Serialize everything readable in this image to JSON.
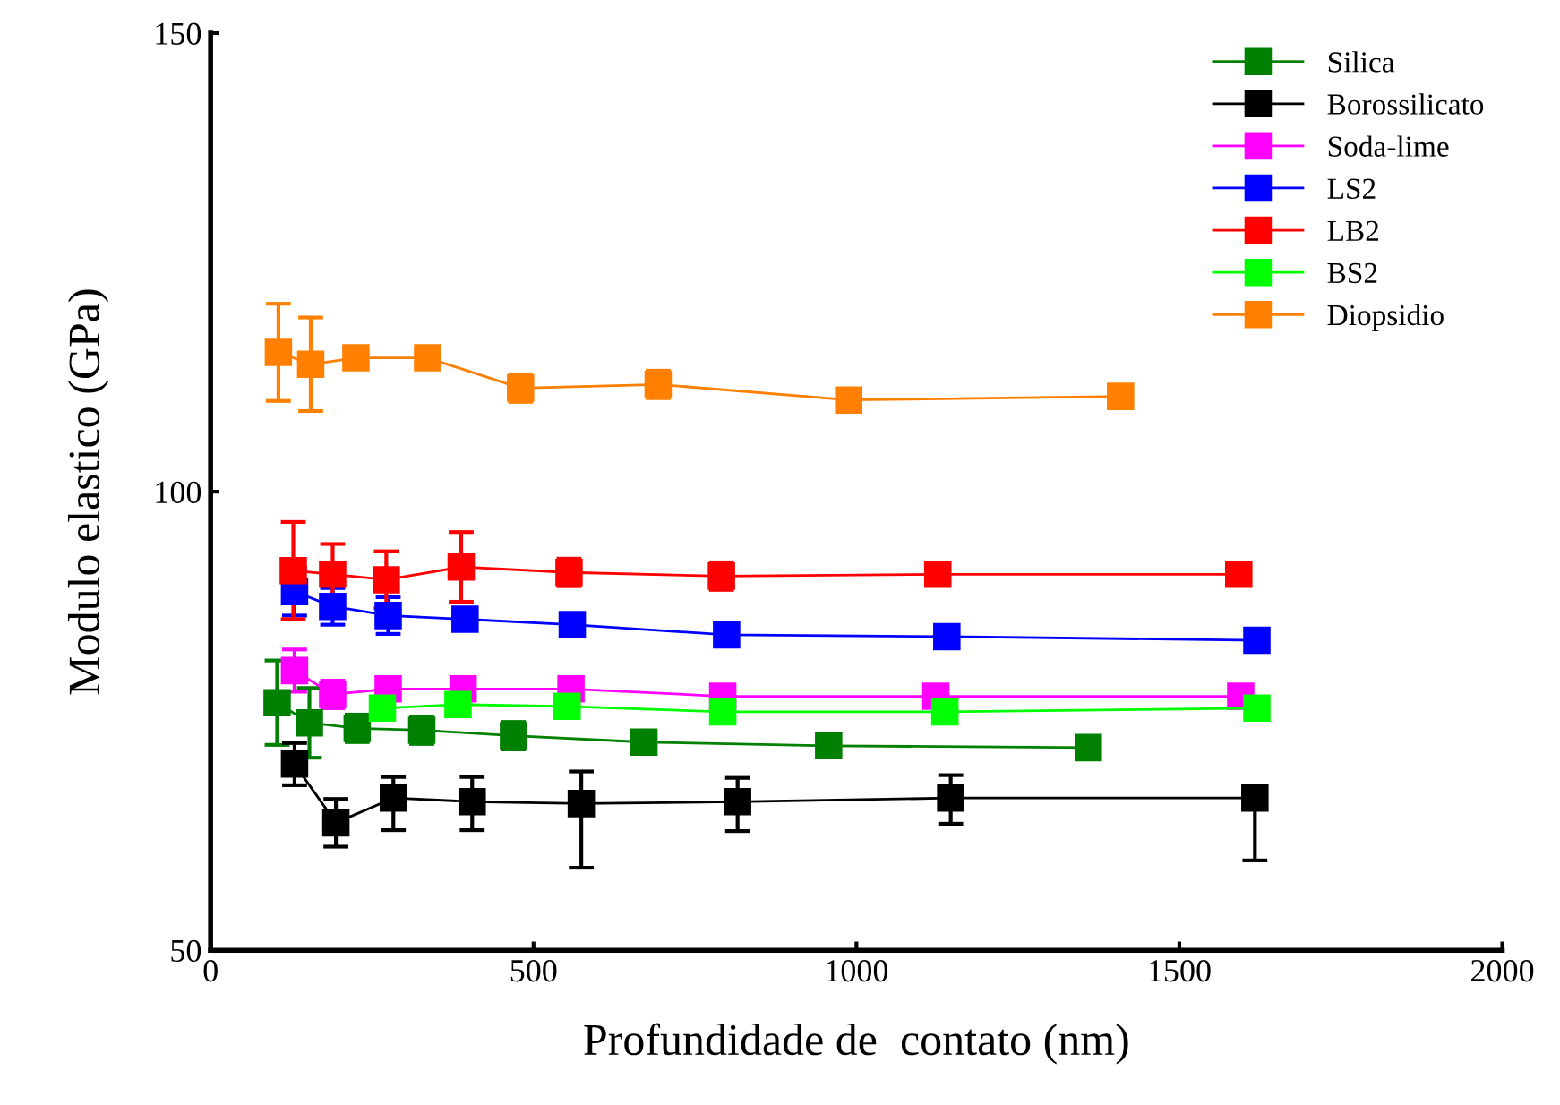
{
  "chart_data": {
    "type": "line",
    "xlabel": "Profundidade de  contato (nm)",
    "ylabel": "Modulo elastico (GPa)",
    "xlim": [
      0,
      2000
    ],
    "xticks": [
      0,
      500,
      1000,
      1500,
      2000
    ],
    "ylim": [
      50,
      150
    ],
    "yticks": [
      50,
      100,
      150
    ],
    "grid": false,
    "legend": "top right",
    "marker": "square",
    "line_style": "solid",
    "series": [
      {
        "name": "Silica",
        "color": "#008000",
        "x": [
          103,
          153,
          227,
          327,
          469,
          671,
          957,
          1359
        ],
        "values": [
          77.0,
          74.8,
          74.2,
          74.0,
          73.4,
          72.7,
          72.3,
          72.1
        ],
        "errors": [
          4.6,
          3.8,
          1.5,
          1.5,
          1.5,
          null,
          null,
          null
        ]
      },
      {
        "name": "Borossilicato",
        "color": "#000000",
        "x": [
          130,
          194,
          283,
          405,
          574,
          816,
          1146,
          1617
        ],
        "values": [
          70.3,
          63.9,
          66.6,
          66.2,
          66.0,
          66.2,
          66.6,
          66.6
        ],
        "errors": [
          2.3,
          2.6,
          [
            63.1,
            68.9
          ],
          [
            63.1,
            68.9
          ],
          [
            59.0,
            69.5
          ],
          [
            63.0,
            68.8
          ],
          [
            63.8,
            69.1
          ],
          [
            59.8,
            67.6
          ]
        ]
      },
      {
        "name": "Soda-lime",
        "color": "#ff00ff",
        "x": [
          130,
          189,
          275,
          391,
          558,
          793,
          1123,
          1595
        ],
        "values": [
          80.5,
          77.9,
          78.5,
          78.5,
          78.5,
          77.7,
          77.7,
          77.7
        ],
        "errors": [
          2.3,
          1.5,
          null,
          null,
          null,
          null,
          null,
          null
        ]
      },
      {
        "name": "LS2",
        "color": "#0000ff",
        "x": [
          130,
          189,
          275,
          394,
          560,
          799,
          1140,
          1620
        ],
        "values": [
          89.1,
          87.5,
          86.5,
          86.1,
          85.5,
          84.4,
          84.2,
          83.8
        ],
        "errors": [
          2.6,
          2.0,
          2.0,
          null,
          null,
          null,
          null,
          null
        ]
      },
      {
        "name": "LB2",
        "color": "#ff0000",
        "x": [
          128,
          189,
          272,
          388,
          555,
          791,
          1126,
          1592
        ],
        "values": [
          91.4,
          91.0,
          90.4,
          91.8,
          91.2,
          90.8,
          91.0,
          91.0
        ],
        "errors": [
          5.3,
          3.3,
          3.1,
          3.8,
          1.5,
          1.5,
          null,
          null
        ]
      },
      {
        "name": "BS2",
        "color": "#00ff00",
        "x": [
          266,
          383,
          552,
          793,
          1137,
          1620
        ],
        "values": [
          76.4,
          76.8,
          76.6,
          76.0,
          76.0,
          76.4
        ]
      },
      {
        "name": "Diopsidio",
        "color": "#ff8000",
        "x": [
          105,
          155,
          225,
          336,
          480,
          693,
          988,
          1409
        ],
        "values": [
          115.2,
          113.9,
          114.6,
          114.6,
          111.3,
          111.7,
          110.0,
          110.4
        ],
        "errors": [
          5.3,
          5.1,
          null,
          null,
          1.5,
          1.5,
          null,
          null
        ]
      }
    ]
  }
}
